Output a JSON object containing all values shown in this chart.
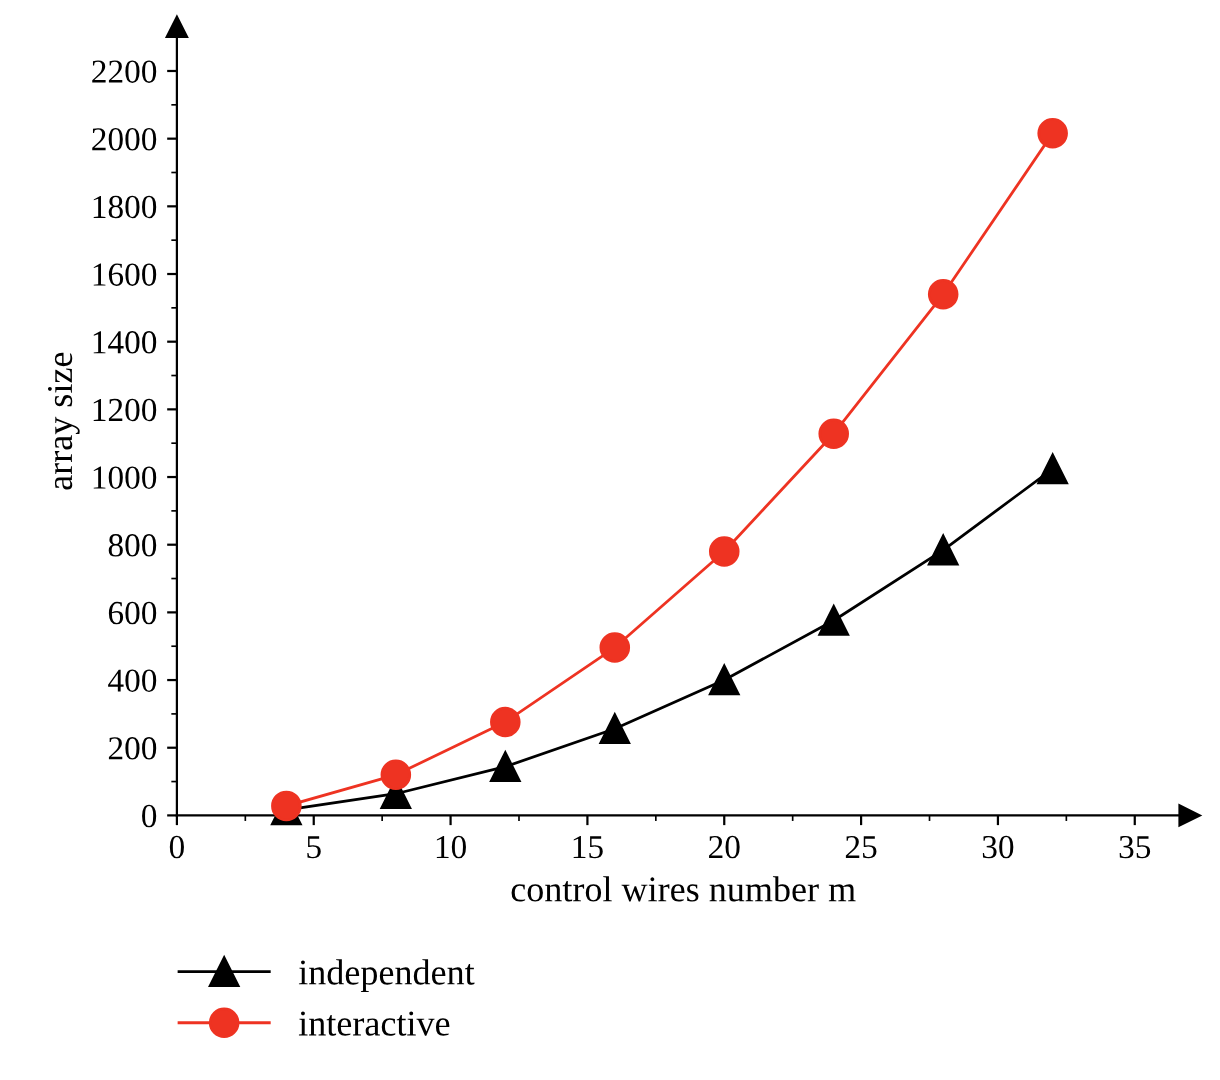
{
  "chart_data": {
    "type": "line",
    "xlabel": "control wires number m",
    "ylabel": "array size",
    "x": [
      4,
      8,
      12,
      16,
      20,
      24,
      28,
      32
    ],
    "series": [
      {
        "name": "independent",
        "color": "#000000",
        "marker": "triangle",
        "values": [
          16,
          64,
          144,
          256,
          400,
          576,
          784,
          1024
        ]
      },
      {
        "name": "interactive",
        "color": "#ee3322",
        "marker": "circle",
        "values": [
          28,
          120,
          276,
          496,
          780,
          1128,
          1540,
          2016
        ]
      }
    ],
    "xlim": [
      0,
      37
    ],
    "ylim": [
      0,
      2330
    ],
    "xticks": [
      0,
      5,
      10,
      15,
      20,
      25,
      30,
      35
    ],
    "yticks": [
      0,
      200,
      400,
      600,
      800,
      1000,
      1200,
      1400,
      1600,
      1800,
      2000,
      2200
    ],
    "grid": false,
    "legend": "bottom",
    "line_style": "solid"
  }
}
